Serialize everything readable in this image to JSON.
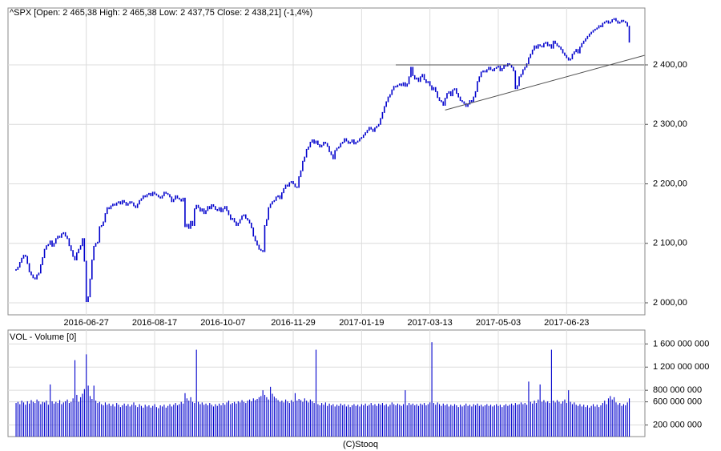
{
  "footer": "(C)Stooq",
  "chart_data": [
    {
      "type": "candlestick",
      "title": "^SPX [Open: 2 465,38  High: 2 465,38  Low: 2 437,75  Close: 2 438,21] (-1,4%)",
      "color": "#0000cc",
      "grid": true,
      "ylim": [
        1979.8,
        2495.6
      ],
      "yticks": [
        {
          "value": 2000,
          "label": "2 000,00"
        },
        {
          "value": 2100,
          "label": "2 100,00"
        },
        {
          "value": 2200,
          "label": "2 200,00"
        },
        {
          "value": 2300,
          "label": "2 300,00"
        },
        {
          "value": 2400,
          "label": "2 400,00"
        }
      ],
      "categories": [
        null,
        null,
        null,
        null,
        null,
        null,
        null,
        null,
        null,
        null,
        null,
        null,
        null,
        null,
        null,
        null,
        null,
        null,
        null,
        null,
        null,
        null,
        null,
        null,
        null,
        null,
        null,
        null,
        null,
        null,
        null,
        null,
        null,
        null,
        null,
        null,
        null,
        "2016-06-27",
        null,
        null,
        null,
        null,
        null,
        null,
        null,
        null,
        null,
        null,
        null,
        null,
        null,
        null,
        null,
        null,
        null,
        null,
        null,
        null,
        null,
        null,
        null,
        null,
        null,
        null,
        null,
        null,
        null,
        null,
        null,
        null,
        null,
        null,
        null,
        "2016-08-17",
        null,
        null,
        null,
        null,
        null,
        null,
        null,
        null,
        null,
        null,
        null,
        null,
        null,
        null,
        null,
        null,
        null,
        null,
        null,
        null,
        null,
        null,
        null,
        null,
        null,
        null,
        null,
        null,
        null,
        null,
        null,
        null,
        null,
        null,
        null,
        "2016-10-07",
        null,
        null,
        null,
        null,
        null,
        null,
        null,
        null,
        null,
        null,
        null,
        null,
        null,
        null,
        null,
        null,
        null,
        null,
        null,
        null,
        null,
        null,
        null,
        null,
        null,
        null,
        null,
        null,
        null,
        null,
        null,
        null,
        null,
        null,
        null,
        null,
        "2016-11-29",
        null,
        null,
        null,
        null,
        null,
        null,
        null,
        null,
        null,
        null,
        null,
        null,
        null,
        null,
        null,
        null,
        null,
        null,
        null,
        null,
        null,
        null,
        null,
        null,
        null,
        null,
        null,
        null,
        null,
        null,
        null,
        null,
        null,
        null,
        null,
        "2017-01-19",
        null,
        null,
        null,
        null,
        null,
        null,
        null,
        null,
        null,
        null,
        null,
        null,
        null,
        null,
        null,
        null,
        null,
        null,
        null,
        null,
        null,
        null,
        null,
        null,
        null,
        null,
        null,
        null,
        null,
        null,
        null,
        null,
        null,
        null,
        null,
        "2017-03-13",
        null,
        null,
        null,
        null,
        null,
        null,
        null,
        null,
        null,
        null,
        null,
        null,
        null,
        null,
        null,
        null,
        null,
        null,
        null,
        null,
        null,
        null,
        null,
        null,
        null,
        null,
        null,
        null,
        null,
        null,
        null,
        null,
        null,
        null,
        null,
        "2017-05-03",
        null,
        null,
        null,
        null,
        null,
        null,
        null,
        null,
        null,
        null,
        null,
        null,
        null,
        null,
        null,
        null,
        null,
        null,
        null,
        null,
        null,
        null,
        null,
        null,
        null,
        null,
        null,
        null,
        null,
        null,
        null,
        null,
        null,
        null,
        null,
        "2017-06-23",
        null,
        null,
        null,
        null,
        null,
        null,
        null,
        null,
        null,
        null,
        null,
        null,
        null,
        null,
        null,
        null,
        null,
        null,
        null,
        null,
        null,
        null,
        null,
        null,
        null,
        null,
        null,
        null,
        null,
        null,
        null,
        null,
        null
      ],
      "values": [
        2056,
        2060,
        2068,
        2075,
        2080,
        2078,
        2066,
        2052,
        2047,
        2042,
        2040,
        2047,
        2050,
        2064,
        2076,
        2090,
        2096,
        2098,
        2104,
        2095,
        2100,
        2108,
        2112,
        2110,
        2116,
        2118,
        2112,
        2108,
        2096,
        2088,
        2078,
        2072,
        2084,
        2090,
        2096,
        2108,
        2070,
        2002,
        2010,
        2040,
        2072,
        2095,
        2100,
        2102,
        2128,
        2130,
        2136,
        2150,
        2160,
        2158,
        2163,
        2166,
        2164,
        2168,
        2170,
        2166,
        2172,
        2169,
        2164,
        2167,
        2170,
        2168,
        2163,
        2160,
        2166,
        2172,
        2175,
        2180,
        2178,
        2182,
        2184,
        2180,
        2186,
        2183,
        2181,
        2178,
        2176,
        2180,
        2186,
        2184,
        2182,
        2178,
        2170,
        2174,
        2180,
        2176,
        2174,
        2171,
        2176,
        2128,
        2132,
        2125,
        2137,
        2130,
        2158,
        2164,
        2160,
        2154,
        2158,
        2150,
        2155,
        2162,
        2158,
        2165,
        2162,
        2157,
        2155,
        2160,
        2153,
        2158,
        2162,
        2155,
        2148,
        2140,
        2142,
        2136,
        2130,
        2134,
        2140,
        2146,
        2148,
        2142,
        2139,
        2134,
        2126,
        2112,
        2104,
        2097,
        2090,
        2088,
        2086,
        2130,
        2140,
        2160,
        2166,
        2170,
        2172,
        2178,
        2180,
        2175,
        2185,
        2192,
        2198,
        2196,
        2202,
        2204,
        2200,
        2195,
        2194,
        2212,
        2222,
        2238,
        2245,
        2258,
        2262,
        2270,
        2274,
        2268,
        2272,
        2266,
        2262,
        2265,
        2270,
        2268,
        2263,
        2254,
        2249,
        2242,
        2256,
        2260,
        2262,
        2268,
        2270,
        2276,
        2272,
        2268,
        2270,
        2274,
        2267,
        2270,
        2272,
        2276,
        2278,
        2282,
        2286,
        2290,
        2295,
        2292,
        2288,
        2294,
        2297,
        2300,
        2310,
        2320,
        2330,
        2338,
        2346,
        2350,
        2358,
        2364,
        2363,
        2366,
        2368,
        2365,
        2370,
        2364,
        2368,
        2380,
        2396,
        2382,
        2376,
        2378,
        2372,
        2380,
        2384,
        2375,
        2370,
        2372,
        2365,
        2358,
        2362,
        2355,
        2345,
        2340,
        2338,
        2332,
        2344,
        2352,
        2355,
        2348,
        2358,
        2360,
        2352,
        2346,
        2340,
        2338,
        2335,
        2330,
        2334,
        2340,
        2338,
        2346,
        2355,
        2372,
        2380,
        2388,
        2390,
        2388,
        2392,
        2396,
        2392,
        2390,
        2394,
        2396,
        2398,
        2390,
        2394,
        2399,
        2398,
        2402,
        2400,
        2396,
        2390,
        2360,
        2365,
        2380,
        2384,
        2392,
        2396,
        2402,
        2412,
        2418,
        2425,
        2432,
        2428,
        2434,
        2432,
        2430,
        2436,
        2438,
        2432,
        2434,
        2428,
        2440,
        2436,
        2432,
        2430,
        2426,
        2420,
        2416,
        2412,
        2408,
        2410,
        2418,
        2422,
        2426,
        2420,
        2430,
        2436,
        2440,
        2444,
        2448,
        2452,
        2455,
        2458,
        2460,
        2462,
        2466,
        2464,
        2470,
        2472,
        2474,
        2470,
        2472,
        2476,
        2478,
        2474,
        2470,
        2472,
        2475,
        2473,
        2471,
        2465,
        2438.21
      ],
      "trendlines": [
        {
          "color": "#505050",
          "x": [
            200,
            331
          ],
          "y": [
            2400,
            2400
          ]
        },
        {
          "color": "#505050",
          "x": [
            226,
            331
          ],
          "y": [
            2324,
            2416
          ]
        }
      ]
    },
    {
      "type": "bar",
      "title": "VOL - Volume [0]",
      "color": "#0000cc",
      "grid": true,
      "ylim": [
        0,
        1840000000
      ],
      "yticks": [
        {
          "value": 200000000,
          "label": "200 000 000"
        },
        {
          "value": 600000000,
          "label": "600 000 000"
        },
        {
          "value": 800000000,
          "label": "800 000 000"
        },
        {
          "value": 1200000000,
          "label": "1 200 000 000"
        },
        {
          "value": 1600000000,
          "label": "1 600 000 000"
        }
      ],
      "values": [
        580000000.0,
        600000000.0,
        560000000.0,
        620000000.0,
        590000000.0,
        550000000.0,
        610000000.0,
        570000000.0,
        630000000.0,
        600000000.0,
        580000000.0,
        640000000.0,
        610000000.0,
        560000000.0,
        600000000.0,
        590000000.0,
        620000000.0,
        550000000.0,
        900000000.0,
        610000000.0,
        570000000.0,
        600000000.0,
        580000000.0,
        630000000.0,
        560000000.0,
        590000000.0,
        610000000.0,
        640000000.0,
        580000000.0,
        600000000.0,
        660000000.0,
        1320000000.0,
        720000000.0,
        600000000.0,
        680000000.0,
        740000000.0,
        820000000.0,
        1420000000.0,
        880000000.0,
        700000000.0,
        650000000.0,
        880000000.0,
        620000000.0,
        580000000.0,
        600000000.0,
        560000000.0,
        540000000.0,
        590000000.0,
        550000000.0,
        570000000.0,
        530000000.0,
        560000000.0,
        520000000.0,
        580000000.0,
        550000000.0,
        510000000.0,
        540000000.0,
        570000000.0,
        530000000.0,
        560000000.0,
        520000000.0,
        550000000.0,
        590000000.0,
        540000000.0,
        510000000.0,
        560000000.0,
        530000000.0,
        500000000.0,
        550000000.0,
        520000000.0,
        540000000.0,
        500000000.0,
        530000000.0,
        560000000.0,
        510000000.0,
        490000000.0,
        540000000.0,
        520000000.0,
        550000000.0,
        500000000.0,
        530000000.0,
        560000000.0,
        520000000.0,
        550000000.0,
        580000000.0,
        540000000.0,
        560000000.0,
        600000000.0,
        570000000.0,
        750000000.0,
        660000000.0,
        620000000.0,
        680000000.0,
        600000000.0,
        580000000.0,
        1500000000.0,
        600000000.0,
        560000000.0,
        590000000.0,
        550000000.0,
        570000000.0,
        540000000.0,
        580000000.0,
        550000000.0,
        520000000.0,
        560000000.0,
        530000000.0,
        570000000.0,
        540000000.0,
        580000000.0,
        550000000.0,
        590000000.0,
        620000000.0,
        560000000.0,
        580000000.0,
        600000000.0,
        570000000.0,
        610000000.0,
        590000000.0,
        630000000.0,
        600000000.0,
        580000000.0,
        620000000.0,
        640000000.0,
        610000000.0,
        660000000.0,
        630000000.0,
        650000000.0,
        680000000.0,
        700000000.0,
        800000000.0,
        720000000.0,
        680000000.0,
        640000000.0,
        860000000.0,
        740000000.0,
        690000000.0,
        660000000.0,
        630000000.0,
        600000000.0,
        620000000.0,
        590000000.0,
        640000000.0,
        610000000.0,
        580000000.0,
        630000000.0,
        600000000.0,
        750000000.0,
        620000000.0,
        650000000.0,
        630000000.0,
        600000000.0,
        660000000.0,
        620000000.0,
        590000000.0,
        640000000.0,
        610000000.0,
        580000000.0,
        1500000000.0,
        560000000.0,
        540000000.0,
        580000000.0,
        550000000.0,
        590000000.0,
        530000000.0,
        570000000.0,
        540000000.0,
        560000000.0,
        520000000.0,
        550000000.0,
        530000000.0,
        570000000.0,
        540000000.0,
        560000000.0,
        520000000.0,
        550000000.0,
        510000000.0,
        540000000.0,
        560000000.0,
        530000000.0,
        550000000.0,
        520000000.0,
        560000000.0,
        540000000.0,
        570000000.0,
        530000000.0,
        550000000.0,
        580000000.0,
        540000000.0,
        560000000.0,
        530000000.0,
        570000000.0,
        550000000.0,
        580000000.0,
        540000000.0,
        560000000.0,
        520000000.0,
        550000000.0,
        590000000.0,
        560000000.0,
        540000000.0,
        570000000.0,
        550000000.0,
        530000000.0,
        560000000.0,
        800000000.0,
        540000000.0,
        580000000.0,
        550000000.0,
        570000000.0,
        540000000.0,
        560000000.0,
        530000000.0,
        570000000.0,
        550000000.0,
        580000000.0,
        540000000.0,
        560000000.0,
        590000000.0,
        1630000000.0,
        580000000.0,
        550000000.0,
        590000000.0,
        560000000.0,
        530000000.0,
        570000000.0,
        540000000.0,
        560000000.0,
        520000000.0,
        550000000.0,
        530000000.0,
        560000000.0,
        540000000.0,
        510000000.0,
        550000000.0,
        520000000.0,
        540000000.0,
        570000000.0,
        530000000.0,
        550000000.0,
        520000000.0,
        560000000.0,
        540000000.0,
        570000000.0,
        530000000.0,
        550000000.0,
        520000000.0,
        540000000.0,
        560000000.0,
        530000000.0,
        550000000.0,
        520000000.0,
        540000000.0,
        560000000.0,
        530000000.0,
        550000000.0,
        510000000.0,
        540000000.0,
        560000000.0,
        530000000.0,
        550000000.0,
        570000000.0,
        540000000.0,
        580000000.0,
        550000000.0,
        560000000.0,
        590000000.0,
        560000000.0,
        580000000.0,
        550000000.0,
        950000000.0,
        600000000.0,
        570000000.0,
        620000000.0,
        580000000.0,
        640000000.0,
        900000000.0,
        600000000.0,
        630000000.0,
        590000000.0,
        610000000.0,
        580000000.0,
        1500000000.0,
        620000000.0,
        590000000.0,
        630000000.0,
        600000000.0,
        570000000.0,
        610000000.0,
        640000000.0,
        580000000.0,
        800000000.0,
        600000000.0,
        560000000.0,
        590000000.0,
        550000000.0,
        530000000.0,
        560000000.0,
        520000000.0,
        550000000.0,
        510000000.0,
        540000000.0,
        500000000.0,
        530000000.0,
        560000000.0,
        520000000.0,
        550000000.0,
        510000000.0,
        540000000.0,
        580000000.0,
        620000000.0,
        560000000.0,
        660000000.0,
        700000000.0,
        640000000.0,
        680000000.0,
        590000000.0,
        550000000.0,
        580000000.0,
        530000000.0,
        560000000.0,
        540000000.0,
        590000000.0,
        660000000.0
      ]
    }
  ]
}
